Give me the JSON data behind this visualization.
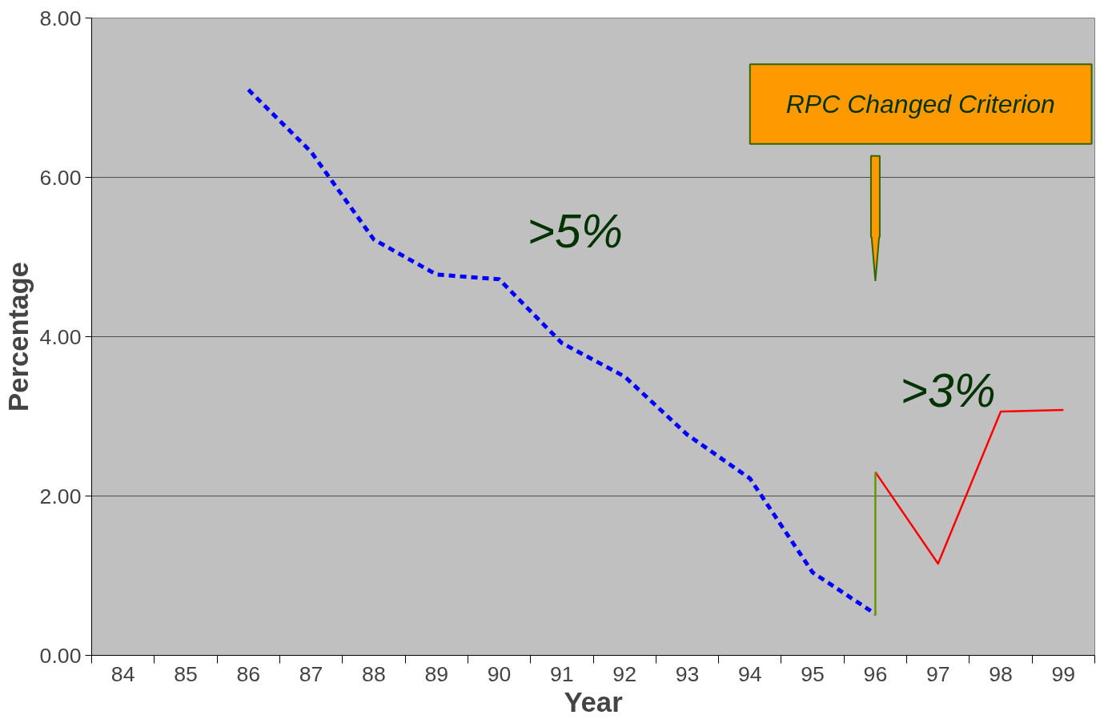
{
  "chart_data": {
    "type": "line",
    "xlabel": "Year",
    "ylabel": "Percentage",
    "categories": [
      "84",
      "85",
      "86",
      "87",
      "88",
      "89",
      "90",
      "91",
      "92",
      "93",
      "94",
      "95",
      "96",
      "97",
      "98",
      "99"
    ],
    "series": [
      {
        "color": "#0000ff",
        "line_style": "dashed",
        "values": [
          null,
          null,
          7.1,
          6.32,
          5.22,
          4.78,
          4.72,
          3.92,
          3.5,
          2.77,
          2.22,
          1.04,
          0.52,
          null,
          null,
          null
        ]
      },
      {
        "color": "#ff0000",
        "line_style": "solid",
        "values": [
          null,
          null,
          null,
          null,
          null,
          null,
          null,
          null,
          null,
          null,
          null,
          null,
          2.3,
          1.15,
          3.06,
          3.08
        ]
      },
      {
        "color": "#669900",
        "line_style": "solid",
        "x": [
          "96",
          "96"
        ],
        "values": [
          0.5,
          2.3
        ]
      }
    ],
    "ylim": [
      0,
      8
    ],
    "yticks": [
      {
        "value": 0,
        "label": "0.00"
      },
      {
        "value": 2,
        "label": "2.00"
      },
      {
        "value": 4,
        "label": "4.00"
      },
      {
        "value": 6,
        "label": "6.00"
      },
      {
        "value": 8,
        "label": "8.00"
      }
    ],
    "grid": "y",
    "marker": "none",
    "annotations": [
      "RPC Changed Criterion",
      ">5%",
      ">3%"
    ]
  }
}
